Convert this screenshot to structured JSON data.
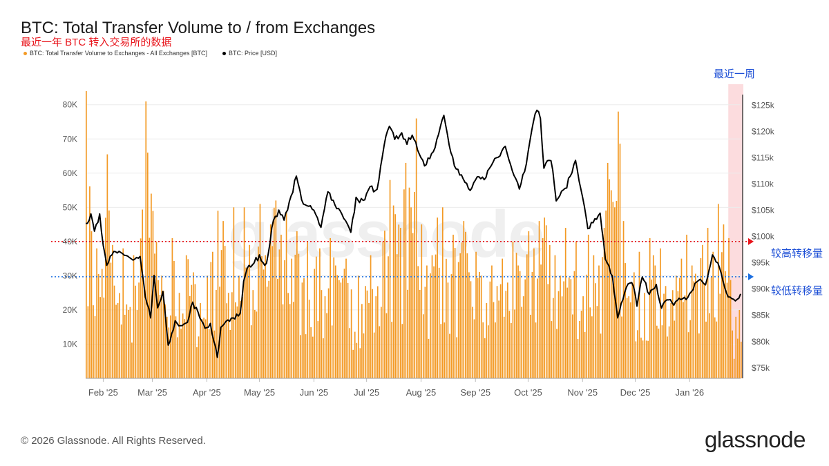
{
  "title": "BTC: Total Transfer Volume to / from Exchanges",
  "subtitle": "最近一年 BTC 转入交易所的数据",
  "legend": {
    "volume": "BTC: Total Transfer Volume to Exchanges - All Exchanges [BTC]",
    "price": "BTC: Price [USD]"
  },
  "footer": "© 2026 Glassnode. All Rights Reserved.",
  "brand": "glassnode",
  "watermark": "glassnode",
  "annotations": {
    "recent_week": "最近一周",
    "high_line": "较高转移量",
    "low_line": "较低转移量"
  },
  "colors": {
    "bars": "#f39a25",
    "price": "#000000",
    "high_line": "#e8141b",
    "low_line": "#1d6fe0",
    "highlight": "#fbd3d6"
  },
  "chart_data": {
    "type": "bar",
    "xlabel": "",
    "ylabel_left": "",
    "ylabel_right": "",
    "x_range": [
      "2025-01-22",
      "2026-01-30"
    ],
    "x_ticks": [
      "Feb '25",
      "Mar '25",
      "Apr '25",
      "May '25",
      "Jun '25",
      "Jul '25",
      "Aug '25",
      "Sep '25",
      "Oct '25",
      "Nov '25",
      "Dec '25",
      "Jan '26"
    ],
    "x_tick_dates": [
      "2025-02-01",
      "2025-03-01",
      "2025-04-01",
      "2025-05-01",
      "2025-06-01",
      "2025-07-01",
      "2025-08-01",
      "2025-09-01",
      "2025-10-01",
      "2025-11-01",
      "2025-12-01",
      "2026-01-01"
    ],
    "y_left": {
      "ticks": [
        "10K",
        "20K",
        "30K",
        "40K",
        "50K",
        "60K",
        "70K",
        "80K"
      ],
      "tick_values": [
        10000,
        20000,
        30000,
        40000,
        50000,
        60000,
        70000,
        80000
      ],
      "range": [
        0,
        86000
      ]
    },
    "y_right": {
      "ticks": [
        "$75k",
        "$80k",
        "$85k",
        "$90k",
        "$95k",
        "$100k",
        "$105k",
        "$110k",
        "$115k",
        "$120k",
        "$125k"
      ],
      "tick_values": [
        75000,
        80000,
        85000,
        90000,
        95000,
        100000,
        105000,
        110000,
        115000,
        120000,
        125000
      ],
      "range": [
        73000,
        129000
      ]
    },
    "reference_lines": [
      {
        "name": "较高转移量",
        "value": 40000,
        "axis": "left",
        "style": "dotted",
        "color": "#e8141b"
      },
      {
        "name": "较低转移量",
        "value": 29700,
        "axis": "left",
        "style": "dotted",
        "color": "#1d6fe0"
      }
    ],
    "highlight_region": {
      "label": "最近一周",
      "x": [
        "2026-01-23",
        "2026-01-30"
      ]
    },
    "grid": true,
    "legend_position": "top-left",
    "series": [
      {
        "name": "BTC: Total Transfer Volume to Exchanges - All Exchanges [BTC]",
        "type": "bar",
        "axis": "left",
        "points": [
          [
            "2025-01-22",
            84000
          ],
          [
            "2025-01-25",
            43000
          ],
          [
            "2025-01-28",
            38000
          ],
          [
            "2025-01-31",
            32000
          ],
          [
            "2025-02-03",
            65500
          ],
          [
            "2025-02-06",
            39000
          ],
          [
            "2025-02-09",
            22000
          ],
          [
            "2025-02-12",
            38000
          ],
          [
            "2025-02-15",
            20000
          ],
          [
            "2025-02-18",
            36000
          ],
          [
            "2025-02-21",
            28000
          ],
          [
            "2025-02-25",
            81000
          ],
          [
            "2025-02-26",
            66000
          ],
          [
            "2025-02-28",
            54000
          ],
          [
            "2025-03-03",
            40000
          ],
          [
            "2025-03-06",
            30000
          ],
          [
            "2025-03-09",
            18000
          ],
          [
            "2025-03-12",
            41000
          ],
          [
            "2025-03-16",
            25000
          ],
          [
            "2025-03-20",
            36000
          ],
          [
            "2025-03-24",
            31000
          ],
          [
            "2025-03-28",
            22000
          ],
          [
            "2025-04-01",
            30000
          ],
          [
            "2025-04-04",
            37000
          ],
          [
            "2025-04-07",
            49000
          ],
          [
            "2025-04-10",
            46000
          ],
          [
            "2025-04-13",
            25000
          ],
          [
            "2025-04-16",
            50000
          ],
          [
            "2025-04-19",
            30000
          ],
          [
            "2025-04-22",
            50000
          ],
          [
            "2025-04-25",
            39000
          ],
          [
            "2025-04-28",
            20000
          ],
          [
            "2025-05-01",
            51000
          ],
          [
            "2025-05-04",
            36000
          ],
          [
            "2025-05-07",
            45000
          ],
          [
            "2025-05-10",
            52000
          ],
          [
            "2025-05-13",
            42000
          ],
          [
            "2025-05-16",
            49000
          ],
          [
            "2025-05-19",
            35000
          ],
          [
            "2025-05-22",
            43000
          ],
          [
            "2025-05-25",
            28000
          ],
          [
            "2025-05-28",
            40000
          ],
          [
            "2025-06-01",
            32000
          ],
          [
            "2025-06-04",
            38000
          ],
          [
            "2025-06-07",
            24000
          ],
          [
            "2025-06-10",
            41000
          ],
          [
            "2025-06-13",
            33000
          ],
          [
            "2025-06-16",
            28000
          ],
          [
            "2025-06-19",
            35000
          ],
          [
            "2025-06-22",
            26000
          ],
          [
            "2025-06-26",
            30000
          ],
          [
            "2025-06-30",
            27000
          ],
          [
            "2025-07-03",
            36000
          ],
          [
            "2025-07-06",
            24000
          ],
          [
            "2025-07-10",
            40000
          ],
          [
            "2025-07-14",
            58000
          ],
          [
            "2025-07-17",
            48000
          ],
          [
            "2025-07-20",
            44000
          ],
          [
            "2025-07-23",
            63000
          ],
          [
            "2025-07-26",
            50000
          ],
          [
            "2025-07-29",
            76000
          ],
          [
            "2025-08-01",
            45000
          ],
          [
            "2025-08-04",
            33000
          ],
          [
            "2025-08-07",
            36000
          ],
          [
            "2025-08-10",
            47000
          ],
          [
            "2025-08-13",
            50000
          ],
          [
            "2025-08-16",
            28000
          ],
          [
            "2025-08-19",
            42000
          ],
          [
            "2025-08-22",
            34000
          ],
          [
            "2025-08-25",
            46000
          ],
          [
            "2025-08-28",
            31000
          ],
          [
            "2025-09-01",
            37000
          ],
          [
            "2025-09-04",
            30000
          ],
          [
            "2025-09-07",
            22000
          ],
          [
            "2025-09-10",
            33000
          ],
          [
            "2025-09-13",
            27000
          ],
          [
            "2025-09-16",
            35000
          ],
          [
            "2025-09-19",
            28000
          ],
          [
            "2025-09-22",
            40000
          ],
          [
            "2025-09-25",
            33000
          ],
          [
            "2025-09-28",
            24000
          ],
          [
            "2025-10-01",
            43000
          ],
          [
            "2025-10-04",
            38000
          ],
          [
            "2025-10-07",
            46000
          ],
          [
            "2025-10-10",
            47000
          ],
          [
            "2025-10-13",
            39000
          ],
          [
            "2025-10-16",
            36000
          ],
          [
            "2025-10-19",
            30000
          ],
          [
            "2025-10-22",
            44000
          ],
          [
            "2025-10-25",
            29000
          ],
          [
            "2025-10-28",
            40000
          ],
          [
            "2025-11-01",
            24000
          ],
          [
            "2025-11-04",
            42000
          ],
          [
            "2025-11-07",
            36000
          ],
          [
            "2025-11-10",
            33000
          ],
          [
            "2025-11-13",
            44000
          ],
          [
            "2025-11-15",
            63000
          ],
          [
            "2025-11-17",
            55000
          ],
          [
            "2025-11-19",
            50000
          ],
          [
            "2025-11-21",
            78000
          ],
          [
            "2025-11-24",
            46000
          ],
          [
            "2025-11-27",
            24000
          ],
          [
            "2025-11-30",
            31000
          ],
          [
            "2025-12-03",
            37000
          ],
          [
            "2025-12-06",
            25000
          ],
          [
            "2025-12-09",
            41000
          ],
          [
            "2025-12-12",
            33000
          ],
          [
            "2025-12-15",
            38000
          ],
          [
            "2025-12-18",
            27000
          ],
          [
            "2025-12-21",
            22000
          ],
          [
            "2025-12-24",
            30000
          ],
          [
            "2025-12-27",
            35000
          ],
          [
            "2025-12-30",
            42000
          ],
          [
            "2026-01-02",
            33000
          ],
          [
            "2026-01-05",
            28000
          ],
          [
            "2026-01-08",
            39000
          ],
          [
            "2026-01-11",
            44000
          ],
          [
            "2026-01-14",
            37000
          ],
          [
            "2026-01-17",
            51000
          ],
          [
            "2026-01-20",
            45000
          ],
          [
            "2026-01-23",
            41000
          ],
          [
            "2026-01-25",
            14000
          ],
          [
            "2026-01-27",
            18000
          ],
          [
            "2026-01-29",
            20000
          ]
        ]
      },
      {
        "name": "BTC: Price [USD]",
        "type": "line",
        "axis": "right",
        "points": [
          [
            "2025-01-22",
            102500
          ],
          [
            "2025-01-25",
            104300
          ],
          [
            "2025-01-27",
            101500
          ],
          [
            "2025-01-30",
            103800
          ],
          [
            "2025-02-01",
            98000
          ],
          [
            "2025-02-03",
            94500
          ],
          [
            "2025-02-06",
            96500
          ],
          [
            "2025-02-10",
            97000
          ],
          [
            "2025-02-14",
            96500
          ],
          [
            "2025-02-18",
            95500
          ],
          [
            "2025-02-22",
            96000
          ],
          [
            "2025-02-25",
            88500
          ],
          [
            "2025-02-28",
            84500
          ],
          [
            "2025-03-02",
            92000
          ],
          [
            "2025-03-04",
            86500
          ],
          [
            "2025-03-07",
            89000
          ],
          [
            "2025-03-10",
            79500
          ],
          [
            "2025-03-14",
            83500
          ],
          [
            "2025-03-18",
            82500
          ],
          [
            "2025-03-21",
            84000
          ],
          [
            "2025-03-24",
            87500
          ],
          [
            "2025-03-28",
            84500
          ],
          [
            "2025-03-31",
            82500
          ],
          [
            "2025-04-03",
            83000
          ],
          [
            "2025-04-07",
            77000
          ],
          [
            "2025-04-09",
            82500
          ],
          [
            "2025-04-12",
            84000
          ],
          [
            "2025-04-16",
            84500
          ],
          [
            "2025-04-20",
            85000
          ],
          [
            "2025-04-22",
            91500
          ],
          [
            "2025-04-25",
            94500
          ],
          [
            "2025-04-28",
            95000
          ],
          [
            "2025-05-01",
            96500
          ],
          [
            "2025-05-04",
            94500
          ],
          [
            "2025-05-06",
            96500
          ],
          [
            "2025-05-09",
            103500
          ],
          [
            "2025-05-12",
            104500
          ],
          [
            "2025-05-15",
            103500
          ],
          [
            "2025-05-18",
            106500
          ],
          [
            "2025-05-22",
            111500
          ],
          [
            "2025-05-25",
            107000
          ],
          [
            "2025-05-29",
            105500
          ],
          [
            "2025-06-01",
            105000
          ],
          [
            "2025-06-05",
            101500
          ],
          [
            "2025-06-09",
            109000
          ],
          [
            "2025-06-13",
            106000
          ],
          [
            "2025-06-17",
            104500
          ],
          [
            "2025-06-22",
            100800
          ],
          [
            "2025-06-25",
            107000
          ],
          [
            "2025-06-30",
            107000
          ],
          [
            "2025-07-03",
            109500
          ],
          [
            "2025-07-07",
            108500
          ],
          [
            "2025-07-11",
            117500
          ],
          [
            "2025-07-14",
            121000
          ],
          [
            "2025-07-17",
            118500
          ],
          [
            "2025-07-21",
            119500
          ],
          [
            "2025-07-24",
            118000
          ],
          [
            "2025-07-28",
            119000
          ],
          [
            "2025-08-01",
            115000
          ],
          [
            "2025-08-03",
            113000
          ],
          [
            "2025-08-08",
            116500
          ],
          [
            "2025-08-11",
            119500
          ],
          [
            "2025-08-14",
            123500
          ],
          [
            "2025-08-17",
            117500
          ],
          [
            "2025-08-20",
            114000
          ],
          [
            "2025-08-25",
            111000
          ],
          [
            "2025-08-29",
            108500
          ],
          [
            "2025-09-02",
            111500
          ],
          [
            "2025-09-06",
            110500
          ],
          [
            "2025-09-10",
            113500
          ],
          [
            "2025-09-14",
            115500
          ],
          [
            "2025-09-18",
            117000
          ],
          [
            "2025-09-22",
            112500
          ],
          [
            "2025-09-26",
            109500
          ],
          [
            "2025-09-30",
            114000
          ],
          [
            "2025-10-03",
            120500
          ],
          [
            "2025-10-06",
            124500
          ],
          [
            "2025-10-08",
            123000
          ],
          [
            "2025-10-10",
            113000
          ],
          [
            "2025-10-14",
            115000
          ],
          [
            "2025-10-17",
            107000
          ],
          [
            "2025-10-21",
            108500
          ],
          [
            "2025-10-24",
            110500
          ],
          [
            "2025-10-28",
            114500
          ],
          [
            "2025-10-31",
            109500
          ],
          [
            "2025-11-04",
            101500
          ],
          [
            "2025-11-08",
            103000
          ],
          [
            "2025-11-11",
            104500
          ],
          [
            "2025-11-14",
            96000
          ],
          [
            "2025-11-18",
            92000
          ],
          [
            "2025-11-21",
            84500
          ],
          [
            "2025-11-24",
            88000
          ],
          [
            "2025-11-27",
            91000
          ],
          [
            "2025-11-30",
            90500
          ],
          [
            "2025-12-02",
            87000
          ],
          [
            "2025-12-05",
            92500
          ],
          [
            "2025-12-09",
            89000
          ],
          [
            "2025-12-13",
            90500
          ],
          [
            "2025-12-16",
            86000
          ],
          [
            "2025-12-19",
            88500
          ],
          [
            "2025-12-23",
            87500
          ],
          [
            "2025-12-27",
            88000
          ],
          [
            "2025-12-31",
            88000
          ],
          [
            "2026-01-04",
            91000
          ],
          [
            "2026-01-07",
            92000
          ],
          [
            "2026-01-10",
            90500
          ],
          [
            "2026-01-14",
            96500
          ],
          [
            "2026-01-17",
            95000
          ],
          [
            "2026-01-20",
            91500
          ],
          [
            "2026-01-23",
            88500
          ],
          [
            "2026-01-26",
            88000
          ],
          [
            "2026-01-28",
            87500
          ],
          [
            "2026-01-30",
            89000
          ]
        ]
      }
    ]
  }
}
